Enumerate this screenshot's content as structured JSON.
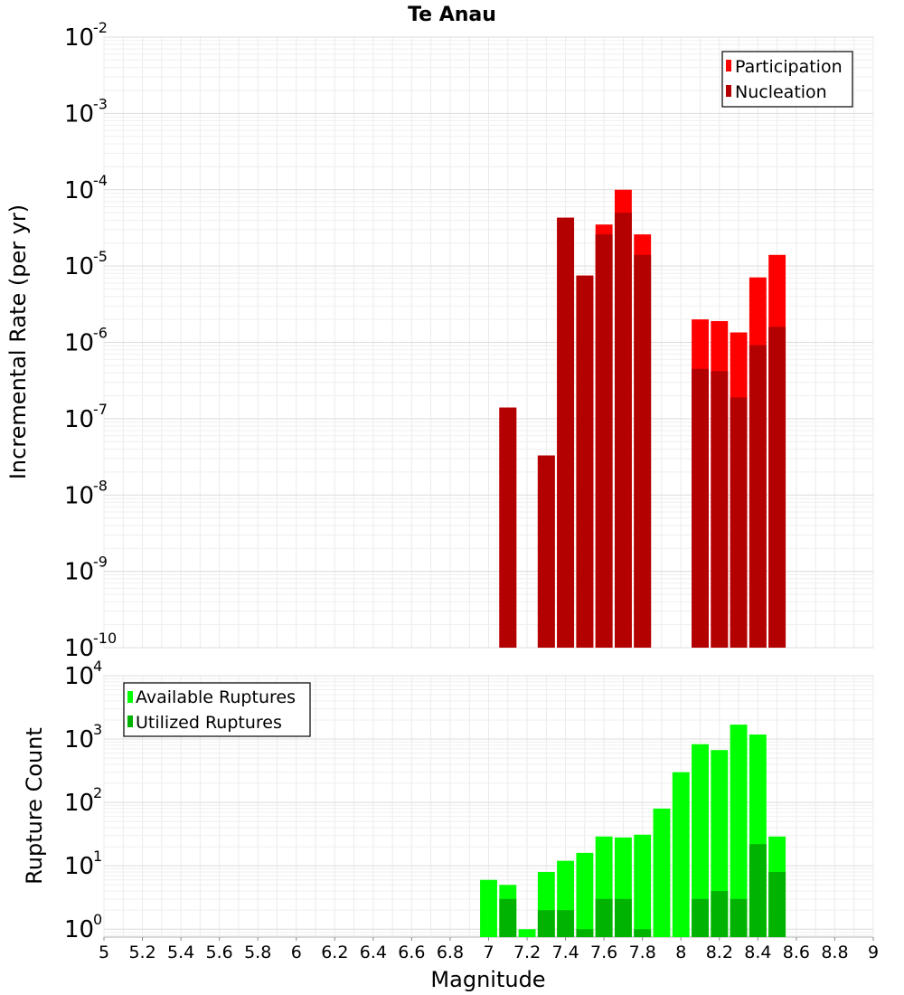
{
  "chart_data": [
    {
      "type": "bar",
      "title": "Te Anau",
      "xlabel": "Magnitude",
      "ylabel": "Incremental Rate (per yr)",
      "yscale": "log",
      "xlim": [
        5,
        9
      ],
      "ylim": [
        1e-10,
        0.01
      ],
      "grid": true,
      "legend_position": "top-right",
      "bin_width": 0.1,
      "x": [
        7.1,
        7.3,
        7.4,
        7.5,
        7.6,
        7.7,
        7.8,
        8.1,
        8.2,
        8.3,
        8.4,
        8.5
      ],
      "series": [
        {
          "name": "Participation",
          "color": "#ff0000",
          "values": [
            1.4e-07,
            3.3e-08,
            4.3e-05,
            7.5e-06,
            3.5e-05,
            0.0001,
            2.6e-05,
            2e-06,
            1.9e-06,
            1.35e-06,
            7.1e-06,
            1.4e-05
          ]
        },
        {
          "name": "Nucleation",
          "color": "#b30000",
          "values": [
            1.4e-07,
            3.3e-08,
            4.3e-05,
            7.5e-06,
            2.6e-05,
            5e-05,
            1.4e-05,
            4.5e-07,
            4.2e-07,
            1.9e-07,
            9.2e-07,
            1.6e-06
          ]
        }
      ]
    },
    {
      "type": "bar",
      "title": "",
      "xlabel": "Magnitude",
      "ylabel": "Rupture Count",
      "yscale": "log",
      "xlim": [
        5,
        9
      ],
      "ylim": [
        0.75,
        10000.0
      ],
      "grid": true,
      "legend_position": "top-left",
      "bin_width": 0.1,
      "x": [
        7.0,
        7.1,
        7.2,
        7.3,
        7.4,
        7.5,
        7.6,
        7.7,
        7.8,
        7.9,
        8.0,
        8.1,
        8.2,
        8.3,
        8.4,
        8.5
      ],
      "series": [
        {
          "name": "Available Ruptures",
          "color": "#00ff00",
          "values": [
            6,
            5,
            1,
            8,
            12,
            16,
            29,
            28,
            31,
            80,
            300,
            830,
            670,
            1690,
            1180,
            29
          ]
        },
        {
          "name": "Utilized Ruptures",
          "color": "#00b300",
          "values": [
            0,
            3,
            0,
            2,
            2,
            1,
            3,
            3,
            1,
            0,
            0,
            3,
            4,
            3,
            22,
            8
          ]
        }
      ]
    }
  ],
  "x_ticks": [
    "5",
    "5.2",
    "5.4",
    "5.6",
    "5.8",
    "6",
    "6.2",
    "6.4",
    "6.6",
    "6.8",
    "7",
    "7.2",
    "7.4",
    "7.6",
    "7.8",
    "8",
    "8.2",
    "8.4",
    "8.6",
    "8.8",
    "9"
  ],
  "top_y_ticks": [
    {
      "base": "10",
      "exp": "-10"
    },
    {
      "base": "10",
      "exp": "-9"
    },
    {
      "base": "10",
      "exp": "-8"
    },
    {
      "base": "10",
      "exp": "-7"
    },
    {
      "base": "10",
      "exp": "-6"
    },
    {
      "base": "10",
      "exp": "-5"
    },
    {
      "base": "10",
      "exp": "-4"
    },
    {
      "base": "10",
      "exp": "-3"
    },
    {
      "base": "10",
      "exp": "-2"
    }
  ],
  "bottom_y_ticks": [
    {
      "base": "10",
      "exp": "0"
    },
    {
      "base": "10",
      "exp": "1"
    },
    {
      "base": "10",
      "exp": "2"
    },
    {
      "base": "10",
      "exp": "3"
    },
    {
      "base": "10",
      "exp": "4"
    }
  ]
}
